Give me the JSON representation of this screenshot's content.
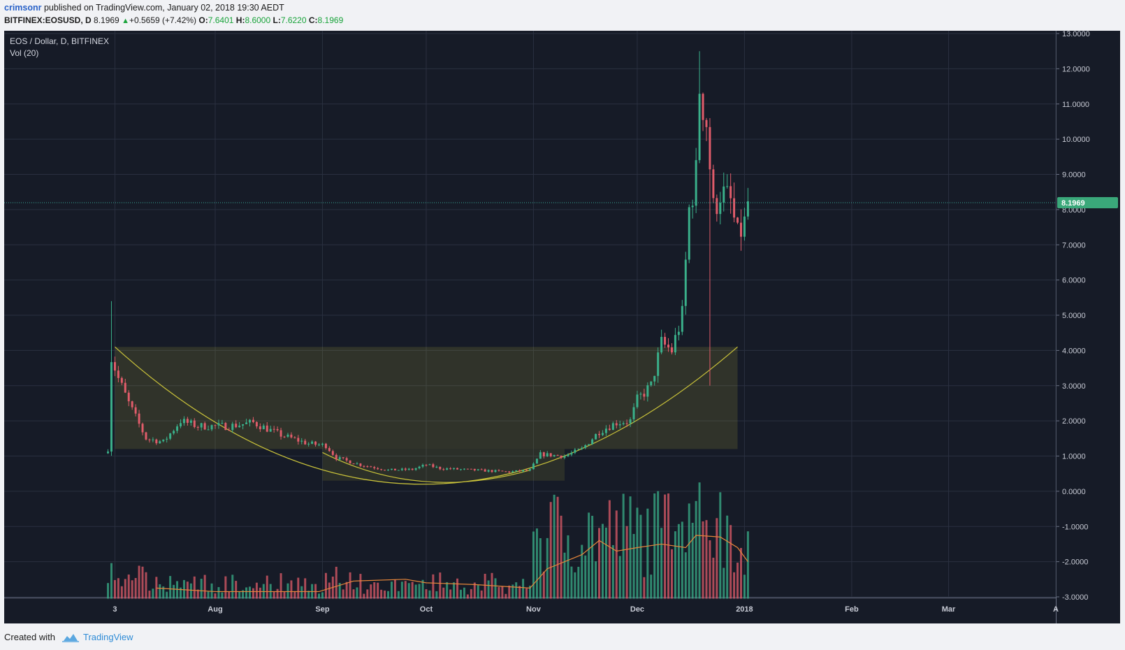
{
  "header": {
    "author": "crimsonr",
    "published_text": "published on TradingView.com, January 02, 2018 19:30 AEDT",
    "symbol": "BITFINEX:EOSUSD, D",
    "last": "8.1969",
    "change": "+0.5659 (+7.42%)",
    "o_label": "O:",
    "o_value": "7.6401",
    "h_label": "H:",
    "h_value": "8.6000",
    "l_label": "L:",
    "l_value": "7.6220",
    "c_label": "C:",
    "c_value": "8.1969"
  },
  "footer": {
    "created_with": "Created with",
    "brand": "TradingView"
  },
  "colors": {
    "background": "#161b27",
    "grid": "#2a3040",
    "up": "#3ab08a",
    "down": "#e05c6a",
    "ma": "#e8873a",
    "pattern": "#c9c23a",
    "price_line": "#3aa89a",
    "price_tag": "#3aa87a"
  },
  "chart_data": {
    "type": "candlestick",
    "title": "EOS / Dollar, D, BITFINEX",
    "indicator": "Vol (20)",
    "current_price": "8.1969",
    "y_ticks": [
      "13.0000",
      "12.0000",
      "11.0000",
      "10.0000",
      "9.0000",
      "8.0000",
      "7.0000",
      "6.0000",
      "5.0000",
      "4.0000",
      "3.0000",
      "2.0000",
      "1.0000",
      "0.0000",
      "-1.0000",
      "-2.0000",
      "-3.0000"
    ],
    "ylim": [
      -3,
      13
    ],
    "x_ticks": [
      {
        "label": "3",
        "date": "2017-07-03"
      },
      {
        "label": "Aug",
        "date": "2017-08-01"
      },
      {
        "label": "Sep",
        "date": "2017-09-01"
      },
      {
        "label": "Oct",
        "date": "2017-10-01"
      },
      {
        "label": "Nov",
        "date": "2017-11-01"
      },
      {
        "label": "Dec",
        "date": "2017-12-01"
      },
      {
        "label": "2018",
        "date": "2018-01-01"
      },
      {
        "label": "Feb",
        "date": "2018-02-01"
      },
      {
        "label": "Mar",
        "date": "2018-03-01"
      },
      {
        "label": "A",
        "date": "2018-04-01"
      }
    ],
    "xlim": [
      "2017-06-01",
      "2018-04-01"
    ],
    "price_anchors": [
      {
        "date": "2017-07-01",
        "close": 1.2
      },
      {
        "date": "2017-07-02",
        "close": 3.8
      },
      {
        "date": "2017-07-04",
        "close": 3.2
      },
      {
        "date": "2017-07-07",
        "close": 2.5
      },
      {
        "date": "2017-07-12",
        "close": 1.5
      },
      {
        "date": "2017-07-17",
        "close": 1.4
      },
      {
        "date": "2017-07-22",
        "close": 2.0
      },
      {
        "date": "2017-07-27",
        "close": 1.85
      },
      {
        "date": "2017-08-05",
        "close": 1.85
      },
      {
        "date": "2017-08-12",
        "close": 1.95
      },
      {
        "date": "2017-08-20",
        "close": 1.6
      },
      {
        "date": "2017-08-28",
        "close": 1.35
      },
      {
        "date": "2017-09-02",
        "close": 1.3
      },
      {
        "date": "2017-09-05",
        "close": 0.95
      },
      {
        "date": "2017-09-12",
        "close": 0.75
      },
      {
        "date": "2017-09-20",
        "close": 0.6
      },
      {
        "date": "2017-09-27",
        "close": 0.62
      },
      {
        "date": "2017-10-01",
        "close": 0.75
      },
      {
        "date": "2017-10-05",
        "close": 0.65
      },
      {
        "date": "2017-10-15",
        "close": 0.6
      },
      {
        "date": "2017-10-25",
        "close": 0.55
      },
      {
        "date": "2017-10-31",
        "close": 0.6
      },
      {
        "date": "2017-11-03",
        "close": 1.05
      },
      {
        "date": "2017-11-10",
        "close": 1.0
      },
      {
        "date": "2017-11-15",
        "close": 1.2
      },
      {
        "date": "2017-11-20",
        "close": 1.7
      },
      {
        "date": "2017-11-25",
        "close": 1.95
      },
      {
        "date": "2017-11-29",
        "close": 2.0
      },
      {
        "date": "2017-12-01",
        "close": 2.6
      },
      {
        "date": "2017-12-05",
        "close": 3.0
      },
      {
        "date": "2017-12-08",
        "close": 4.2
      },
      {
        "date": "2017-12-11",
        "close": 4.0
      },
      {
        "date": "2017-12-14",
        "close": 5.0
      },
      {
        "date": "2017-12-16",
        "close": 8.0
      },
      {
        "date": "2017-12-18",
        "close": 9.0
      },
      {
        "date": "2017-12-19",
        "close": 11.5
      },
      {
        "date": "2017-12-21",
        "close": 10.5
      },
      {
        "date": "2017-12-23",
        "close": 8.0
      },
      {
        "date": "2017-12-25",
        "close": 8.5
      },
      {
        "date": "2017-12-28",
        "close": 8.2
      },
      {
        "date": "2017-12-30",
        "close": 7.2
      },
      {
        "date": "2018-01-01",
        "close": 7.6
      },
      {
        "date": "2018-01-02",
        "close": 8.2
      }
    ],
    "extreme_wicks": [
      {
        "date": "2017-07-02",
        "high": 5.4
      },
      {
        "date": "2017-12-19",
        "high": 12.5
      },
      {
        "date": "2017-12-22",
        "low": 3.0
      }
    ],
    "volume_ma_anchors": [
      {
        "date": "2017-07-15",
        "value": -2.75
      },
      {
        "date": "2017-08-01",
        "value": -2.85
      },
      {
        "date": "2017-08-31",
        "value": -2.85
      },
      {
        "date": "2017-09-10",
        "value": -2.55
      },
      {
        "date": "2017-09-25",
        "value": -2.5
      },
      {
        "date": "2017-10-01",
        "value": -2.6
      },
      {
        "date": "2017-10-15",
        "value": -2.65
      },
      {
        "date": "2017-10-31",
        "value": -2.75
      },
      {
        "date": "2017-11-05",
        "value": -2.2
      },
      {
        "date": "2017-11-15",
        "value": -1.8
      },
      {
        "date": "2017-11-20",
        "value": -1.4
      },
      {
        "date": "2017-11-25",
        "value": -1.7
      },
      {
        "date": "2017-12-01",
        "value": -1.6
      },
      {
        "date": "2017-12-08",
        "value": -1.5
      },
      {
        "date": "2017-12-15",
        "value": -1.6
      },
      {
        "date": "2017-12-18",
        "value": -1.25
      },
      {
        "date": "2017-12-25",
        "value": -1.3
      },
      {
        "date": "2017-12-30",
        "value": -1.6
      },
      {
        "date": "2018-01-02",
        "value": -2.0
      }
    ],
    "cup_arc": {
      "start_date": "2017-07-03",
      "start_price": 4.1,
      "bottom_date": "2017-09-30",
      "bottom_price": 0.2,
      "end_date": "2017-12-30",
      "end_price": 4.1
    },
    "handle_arc": {
      "start_date": "2017-09-01",
      "start_price": 1.1,
      "bottom_date": "2017-09-30",
      "bottom_price": 0.28,
      "end_date": "2017-10-31",
      "end_price": 0.6
    },
    "zone_upper": {
      "date_from": "2017-07-03",
      "date_to": "2017-12-30",
      "price_from": 1.2,
      "price_to": 4.1
    },
    "zone_lower": {
      "date_from": "2017-09-01",
      "date_to": "2017-11-10",
      "price_from": 0.3,
      "price_to": 1.2
    }
  }
}
